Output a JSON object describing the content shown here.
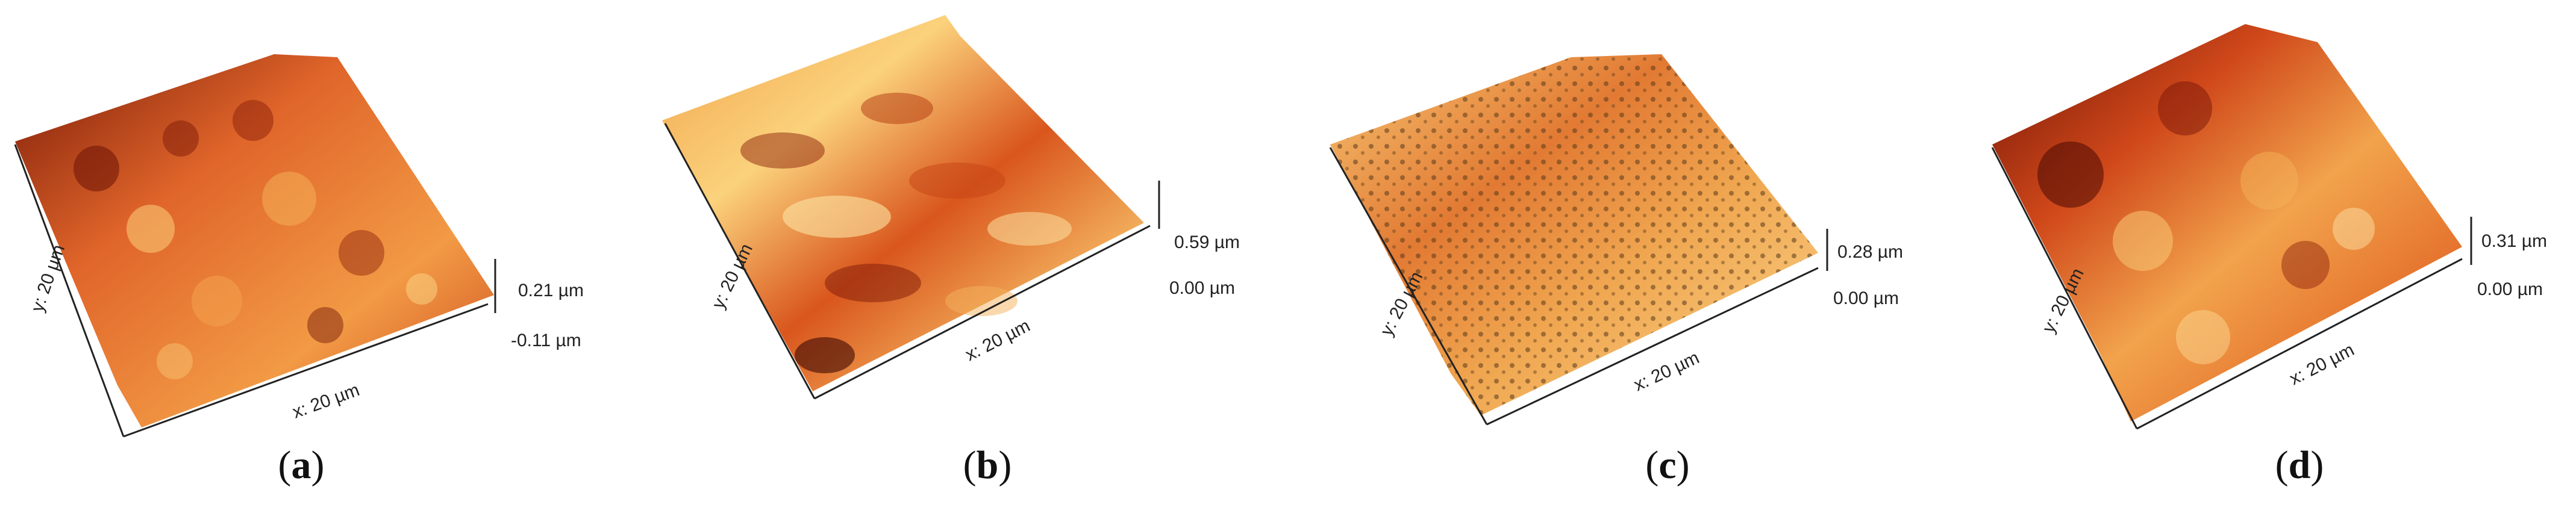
{
  "panels": [
    {
      "id": "a",
      "caption_open": "(",
      "caption_letter": "a",
      "caption_close": ")",
      "y_label": "y: 20 µm",
      "x_label": "x: 20 µm",
      "z_max_label": "0.21 µm",
      "z_min_label": "-0.11 µm",
      "texture": "coarse"
    },
    {
      "id": "b",
      "caption_open": "(",
      "caption_letter": "b",
      "caption_close": ")",
      "y_label": "y: 20 µm",
      "x_label": "x: 20 µm",
      "z_max_label": "0.59 µm",
      "z_min_label": "0.00 µm",
      "texture": "streaked"
    },
    {
      "id": "c",
      "caption_open": "(",
      "caption_letter": "c",
      "caption_close": ")",
      "y_label": "y: 20 µm",
      "x_label": "x: 20 µm",
      "z_max_label": "0.28 µm",
      "z_min_label": "0.00 µm",
      "texture": "fine-pitted"
    },
    {
      "id": "d",
      "caption_open": "(",
      "caption_letter": "d",
      "caption_close": ")",
      "y_label": "y: 20 µm",
      "x_label": "x: 20 µm",
      "z_max_label": "0.31 µm",
      "z_min_label": "0.00 µm",
      "texture": "smooth-dark"
    }
  ],
  "colors": {
    "dark": "#5a0c05",
    "mid": "#d6521a",
    "light": "#f7c56a",
    "pale": "#fbe6a8"
  }
}
